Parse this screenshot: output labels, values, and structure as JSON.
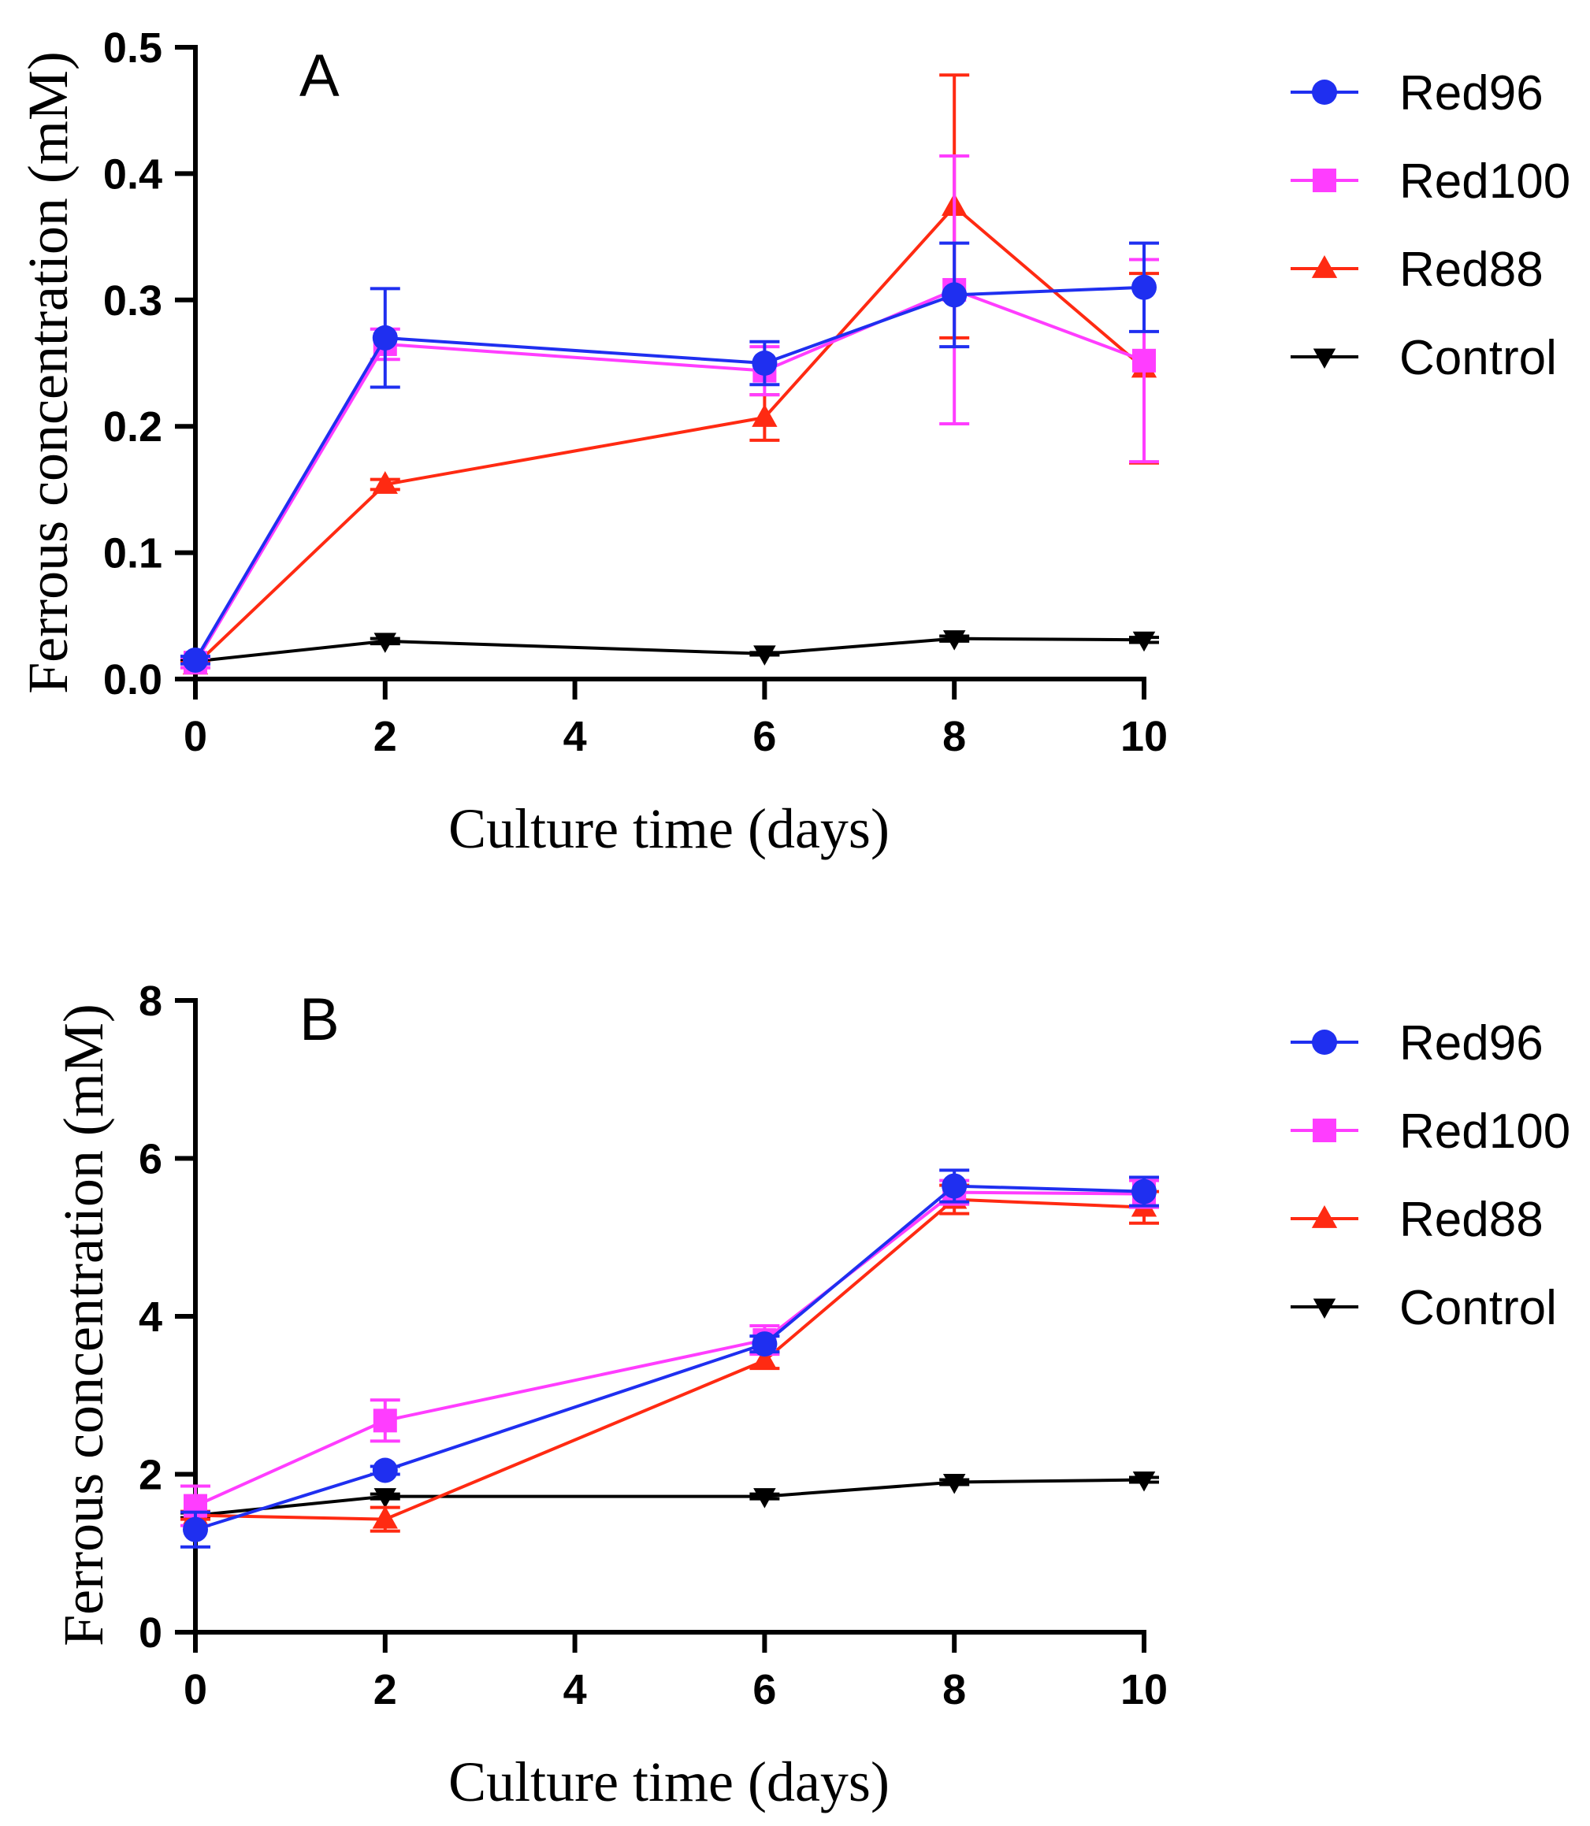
{
  "colors": {
    "Red96": "#1f2ff0",
    "Red100": "#ff3dff",
    "Red88": "#ff2a12",
    "Control": "#000000"
  },
  "chart_data": [
    {
      "type": "line",
      "panel_label": "A",
      "title": "",
      "xlabel": "Culture time (days)",
      "ylabel": "Ferrous concentration (mM)",
      "xlim": [
        0,
        10
      ],
      "ylim": [
        0,
        0.5
      ],
      "x_ticks": [
        0,
        2,
        4,
        6,
        8,
        10
      ],
      "x_tick_labels": [
        "0",
        "2",
        "4",
        "6",
        "8",
        "10"
      ],
      "y_ticks": [
        0,
        0.1,
        0.2,
        0.3,
        0.4,
        0.5
      ],
      "y_tick_labels": [
        "0.0",
        "0.1",
        "0.2",
        "0.3",
        "0.4",
        "0.5"
      ],
      "grid": false,
      "legend_position": "right",
      "x": [
        0,
        2,
        6,
        8,
        10
      ],
      "series": [
        {
          "name": "Red96",
          "marker": "circle",
          "values": [
            0.015,
            0.27,
            0.25,
            0.304,
            0.31
          ],
          "errors": [
            0.003,
            0.039,
            0.017,
            0.041,
            0.035
          ]
        },
        {
          "name": "Red100",
          "marker": "square",
          "values": [
            0.013,
            0.265,
            0.244,
            0.308,
            0.252
          ],
          "errors": [
            0.004,
            0.012,
            0.019,
            0.106,
            0.08
          ]
        },
        {
          "name": "Red88",
          "marker": "triangle-up",
          "values": [
            0.011,
            0.154,
            0.207,
            0.374,
            0.246
          ],
          "errors": [
            0.002,
            0.004,
            0.018,
            0.104,
            0.075
          ]
        },
        {
          "name": "Control",
          "marker": "triangle-down",
          "values": [
            0.014,
            0.03,
            0.02,
            0.032,
            0.031
          ],
          "errors": [
            0.001,
            0.002,
            0.001,
            0.002,
            0.002
          ]
        }
      ]
    },
    {
      "type": "line",
      "panel_label": "B",
      "title": "",
      "xlabel": "Culture time (days)",
      "ylabel": "Ferrous concentration (mM)",
      "xlim": [
        0,
        10
      ],
      "ylim": [
        0,
        8
      ],
      "x_ticks": [
        0,
        2,
        4,
        6,
        8,
        10
      ],
      "x_tick_labels": [
        "0",
        "2",
        "4",
        "6",
        "8",
        "10"
      ],
      "y_ticks": [
        0,
        2,
        4,
        6,
        8
      ],
      "y_tick_labels": [
        "0",
        "2",
        "4",
        "6",
        "8"
      ],
      "grid": false,
      "legend_position": "right",
      "x": [
        0,
        2,
        6,
        8,
        10
      ],
      "series": [
        {
          "name": "Red96",
          "marker": "circle",
          "values": [
            1.3,
            2.05,
            3.65,
            5.65,
            5.58
          ],
          "errors": [
            0.22,
            0.05,
            0.1,
            0.2,
            0.18
          ]
        },
        {
          "name": "Red100",
          "marker": "square",
          "values": [
            1.6,
            2.68,
            3.7,
            5.57,
            5.55
          ],
          "errors": [
            0.25,
            0.26,
            0.18,
            0.15,
            0.17
          ]
        },
        {
          "name": "Red88",
          "marker": "triangle-up",
          "values": [
            1.48,
            1.43,
            3.44,
            5.48,
            5.38
          ],
          "errors": [
            0.05,
            0.15,
            0.1,
            0.18,
            0.2
          ]
        },
        {
          "name": "Control",
          "marker": "triangle-down",
          "values": [
            1.48,
            1.72,
            1.72,
            1.9,
            1.93
          ],
          "errors": [
            0.03,
            0.03,
            0.03,
            0.03,
            0.03
          ]
        }
      ]
    }
  ]
}
